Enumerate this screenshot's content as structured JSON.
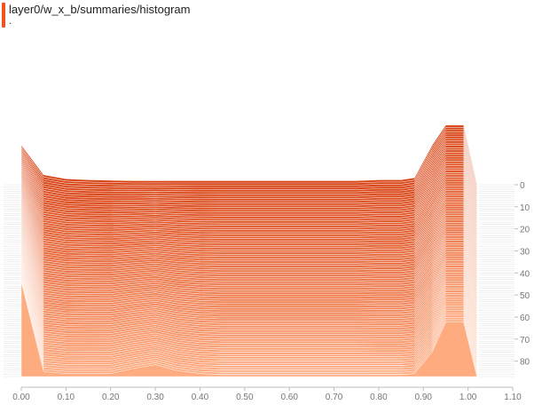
{
  "card": {
    "title": "layer0/w_x_b/summaries/histogram",
    "subtitle": "."
  },
  "colors": {
    "accent": "#f4511e",
    "top_series": "#d84315",
    "bottom_series": "#ffab80",
    "fill_light": "#ffcdb2",
    "axis_text": "#757575",
    "grid": "#e0e0e0"
  },
  "chart_data": {
    "type": "area",
    "x_ticks": [
      "0.00",
      "0.10",
      "0.20",
      "0.30",
      "0.40",
      "0.50",
      "0.60",
      "0.70",
      "0.80",
      "0.90",
      "1.00",
      "1.10"
    ],
    "x_range": [
      0.0,
      1.1
    ],
    "step_ticks": [
      "0",
      "10",
      "20",
      "30",
      "40",
      "50",
      "60",
      "70",
      "80"
    ],
    "step_range": [
      0,
      87
    ],
    "series_count": 88,
    "bins_x": [
      0.0,
      0.05,
      0.1,
      0.15,
      0.2,
      0.25,
      0.3,
      0.35,
      0.4,
      0.45,
      0.5,
      0.55,
      0.6,
      0.65,
      0.7,
      0.75,
      0.8,
      0.85,
      0.88,
      0.92,
      0.95,
      0.99,
      1.02
    ],
    "profile_first": [
      0.4,
      0.1,
      0.06,
      0.05,
      0.045,
      0.04,
      0.04,
      0.04,
      0.04,
      0.04,
      0.04,
      0.04,
      0.04,
      0.04,
      0.04,
      0.04,
      0.05,
      0.05,
      0.07,
      0.4,
      0.6,
      0.6,
      0.0
    ],
    "profile_last": [
      0.95,
      0.05,
      0.03,
      0.03,
      0.03,
      0.08,
      0.12,
      0.06,
      0.03,
      0.02,
      0.02,
      0.02,
      0.02,
      0.02,
      0.02,
      0.02,
      0.02,
      0.02,
      0.03,
      0.25,
      0.55,
      0.55,
      0.0
    ],
    "title": "",
    "xlabel": "",
    "ylabel": ""
  }
}
